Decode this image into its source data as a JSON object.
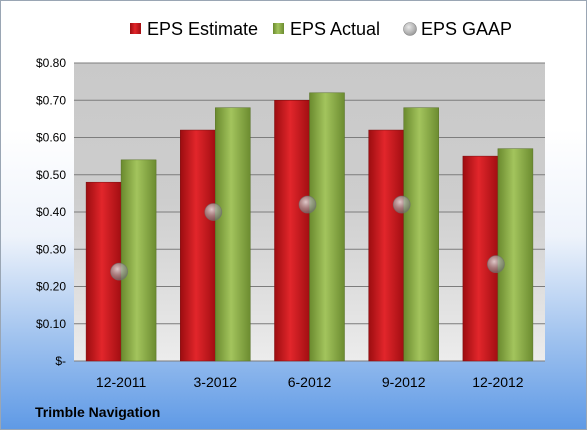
{
  "chart_data": {
    "type": "bar",
    "title": "",
    "xlabel": "",
    "ylabel": "",
    "categories": [
      "12-2011",
      "3-2012",
      "6-2012",
      "9-2012",
      "12-2012"
    ],
    "ylim": [
      0,
      0.8
    ],
    "yticks": [
      0,
      0.1,
      0.2,
      0.3,
      0.4,
      0.5,
      0.6,
      0.7,
      0.8
    ],
    "ytick_labels": [
      "$-",
      "$0.10",
      "$0.20",
      "$0.30",
      "$0.40",
      "$0.50",
      "$0.60",
      "$0.70",
      "$0.80"
    ],
    "grid": true,
    "legend_position": "top",
    "series": [
      {
        "name": "EPS Estimate",
        "kind": "bar",
        "color": "#c8161b",
        "values": [
          0.48,
          0.62,
          0.7,
          0.62,
          0.55
        ]
      },
      {
        "name": "EPS Actual",
        "kind": "bar",
        "color": "#8cb04a",
        "values": [
          0.54,
          0.68,
          0.72,
          0.68,
          0.57
        ]
      },
      {
        "name": "EPS GAAP",
        "kind": "marker",
        "color": "#a8a8a8",
        "values": [
          0.24,
          0.4,
          0.42,
          0.42,
          0.26
        ]
      }
    ]
  },
  "footer": {
    "company": "Trimble Navigation"
  }
}
